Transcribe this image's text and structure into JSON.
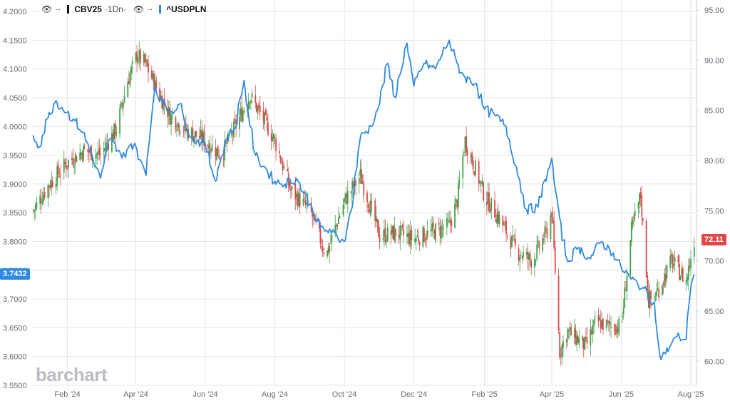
{
  "legend": {
    "series1_symbol": "CBV25",
    "series1_interval": "·1Dn·",
    "series2_symbol": "^USDPLN",
    "eye_icon": "👁",
    "more_icon": "···"
  },
  "colors": {
    "up": "#3fa14a",
    "down": "#d94c4c",
    "usdpln_line": "#2f8ae0",
    "grid": "#e3e5e8",
    "axis_text": "#666b73"
  },
  "watermark": "barchart",
  "badges": {
    "left_value": "3.7432",
    "right_value": "72.11"
  },
  "chart_data": {
    "type": "line",
    "left_axis": {
      "series": "^USDPLN",
      "ylim": [
        3.55,
        4.22
      ],
      "ticks": [
        "4.2000",
        "4.1500",
        "4.1000",
        "4.0500",
        "4.0000",
        "3.9500",
        "3.9000",
        "3.8500",
        "3.8000",
        "3.7500",
        "3.7000",
        "3.6500",
        "3.6000",
        "3.5500"
      ]
    },
    "right_axis": {
      "series": "CBV25",
      "ylim": [
        57.6,
        96.0
      ],
      "ticks": [
        "95.00",
        "90.00",
        "85.00",
        "80.00",
        "75.00",
        "70.00",
        "65.00",
        "60.00"
      ]
    },
    "x_axis": {
      "start": "2024-01-01",
      "end": "2025-08-06",
      "ticks": [
        {
          "label": "Feb '24",
          "date": "2024-02-01"
        },
        {
          "label": "Apr '24",
          "date": "2024-04-01"
        },
        {
          "label": "Jun '24",
          "date": "2024-06-01"
        },
        {
          "label": "Aug '24",
          "date": "2024-08-01"
        },
        {
          "label": "Oct '24",
          "date": "2024-10-01"
        },
        {
          "label": "Dec '24",
          "date": "2024-12-01"
        },
        {
          "label": "Feb '25",
          "date": "2025-02-01"
        },
        {
          "label": "Apr '25",
          "date": "2025-04-01"
        },
        {
          "label": "Jun '25",
          "date": "2025-06-01"
        },
        {
          "label": "Aug '25",
          "date": "2025-08-01"
        }
      ]
    },
    "series": [
      {
        "name": "CBV25",
        "type": "candlestick",
        "axis": "right",
        "x": [
          "2024-01-02",
          "2024-01-15",
          "2024-02-01",
          "2024-02-15",
          "2024-03-01",
          "2024-03-15",
          "2024-03-25",
          "2024-04-02",
          "2024-04-10",
          "2024-04-20",
          "2024-05-01",
          "2024-05-15",
          "2024-06-01",
          "2024-06-15",
          "2024-06-28",
          "2024-07-10",
          "2024-07-20",
          "2024-08-01",
          "2024-08-15",
          "2024-09-01",
          "2024-09-15",
          "2024-10-01",
          "2024-10-15",
          "2024-11-01",
          "2024-11-15",
          "2024-12-01",
          "2024-12-15",
          "2025-01-01",
          "2025-01-08",
          "2025-01-15",
          "2025-02-01",
          "2025-02-15",
          "2025-03-01",
          "2025-03-15",
          "2025-03-28",
          "2025-04-01",
          "2025-04-08",
          "2025-04-15",
          "2025-05-01",
          "2025-05-10",
          "2025-05-20",
          "2025-06-01",
          "2025-06-10",
          "2025-06-18",
          "2025-06-25",
          "2025-07-01",
          "2025-07-15",
          "2025-07-28",
          "2025-08-04"
        ],
        "close": [
          75.0,
          77.5,
          79.8,
          81.0,
          80.6,
          83.2,
          88.0,
          90.5,
          89.5,
          87.0,
          84.5,
          83.0,
          82.0,
          80.5,
          83.5,
          86.5,
          84.5,
          82.0,
          77.0,
          75.0,
          70.5,
          76.0,
          78.5,
          72.5,
          72.8,
          72.2,
          72.8,
          73.5,
          76.0,
          82.0,
          76.5,
          74.0,
          71.0,
          70.0,
          73.0,
          75.0,
          61.0,
          63.0,
          61.5,
          64.0,
          63.5,
          63.5,
          73.0,
          76.5,
          66.0,
          66.5,
          70.0,
          68.0,
          72.11
        ]
      },
      {
        "name": "^USDPLN",
        "type": "line",
        "axis": "left",
        "x": [
          "2024-01-02",
          "2024-01-08",
          "2024-01-15",
          "2024-01-22",
          "2024-02-01",
          "2024-02-08",
          "2024-02-15",
          "2024-02-22",
          "2024-03-01",
          "2024-03-10",
          "2024-03-20",
          "2024-03-28",
          "2024-04-02",
          "2024-04-10",
          "2024-04-18",
          "2024-04-25",
          "2024-05-01",
          "2024-05-10",
          "2024-05-20",
          "2024-06-01",
          "2024-06-10",
          "2024-06-20",
          "2024-06-28",
          "2024-07-05",
          "2024-07-15",
          "2024-07-25",
          "2024-08-01",
          "2024-08-10",
          "2024-08-20",
          "2024-09-01",
          "2024-09-10",
          "2024-09-20",
          "2024-10-01",
          "2024-10-08",
          "2024-10-15",
          "2024-10-25",
          "2024-11-01",
          "2024-11-08",
          "2024-11-15",
          "2024-11-25",
          "2024-12-01",
          "2024-12-10",
          "2024-12-20",
          "2025-01-01",
          "2025-01-08",
          "2025-01-15",
          "2025-01-25",
          "2025-02-01",
          "2025-02-10",
          "2025-02-20",
          "2025-03-01",
          "2025-03-10",
          "2025-03-20",
          "2025-04-01",
          "2025-04-08",
          "2025-04-15",
          "2025-04-25",
          "2025-05-05",
          "2025-05-15",
          "2025-05-25",
          "2025-06-01",
          "2025-06-10",
          "2025-06-20",
          "2025-06-30",
          "2025-07-05",
          "2025-07-10",
          "2025-07-20",
          "2025-07-28",
          "2025-08-01",
          "2025-08-04"
        ],
        "values": [
          3.985,
          3.965,
          4.015,
          4.045,
          4.025,
          4.01,
          3.99,
          3.955,
          3.91,
          3.98,
          3.945,
          3.97,
          3.96,
          3.915,
          4.07,
          4.04,
          4.025,
          4.04,
          3.98,
          3.97,
          3.905,
          3.98,
          4.0,
          4.08,
          3.95,
          3.925,
          3.905,
          3.9,
          3.91,
          3.865,
          3.825,
          3.815,
          3.8,
          3.86,
          3.98,
          4.0,
          4.04,
          4.11,
          4.05,
          4.145,
          4.07,
          4.11,
          4.1,
          4.15,
          4.11,
          4.085,
          4.075,
          4.03,
          4.02,
          4.0,
          3.93,
          3.855,
          3.86,
          3.945,
          3.84,
          3.765,
          3.79,
          3.77,
          3.8,
          3.78,
          3.755,
          3.735,
          3.72,
          3.695,
          3.6,
          3.605,
          3.635,
          3.63,
          3.72,
          3.7432
        ]
      }
    ],
    "grid": true
  }
}
